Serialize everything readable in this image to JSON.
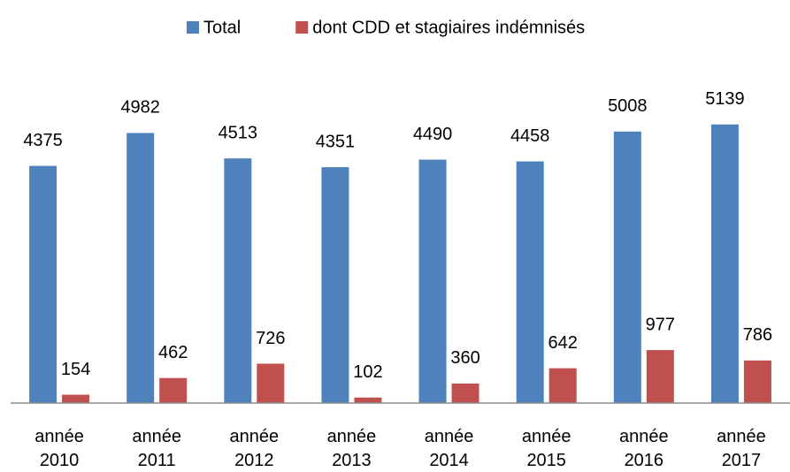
{
  "chart_data": {
    "type": "bar",
    "categories": [
      "année 2010",
      "année 2011",
      "année 2012",
      "année 2013",
      "année 2014",
      "année 2015",
      "année 2016",
      "année 2017"
    ],
    "series": [
      {
        "name": "Total",
        "color": "#4f81bd",
        "values": [
          4375,
          4982,
          4513,
          4351,
          4490,
          4458,
          5008,
          5139
        ]
      },
      {
        "name": "dont CDD et stagiaires indémnisés",
        "color": "#c0504d",
        "values": [
          154,
          462,
          726,
          102,
          360,
          642,
          977,
          786
        ]
      }
    ],
    "ylim": [
      0,
      6000
    ],
    "legend": "top",
    "grid": false
  }
}
